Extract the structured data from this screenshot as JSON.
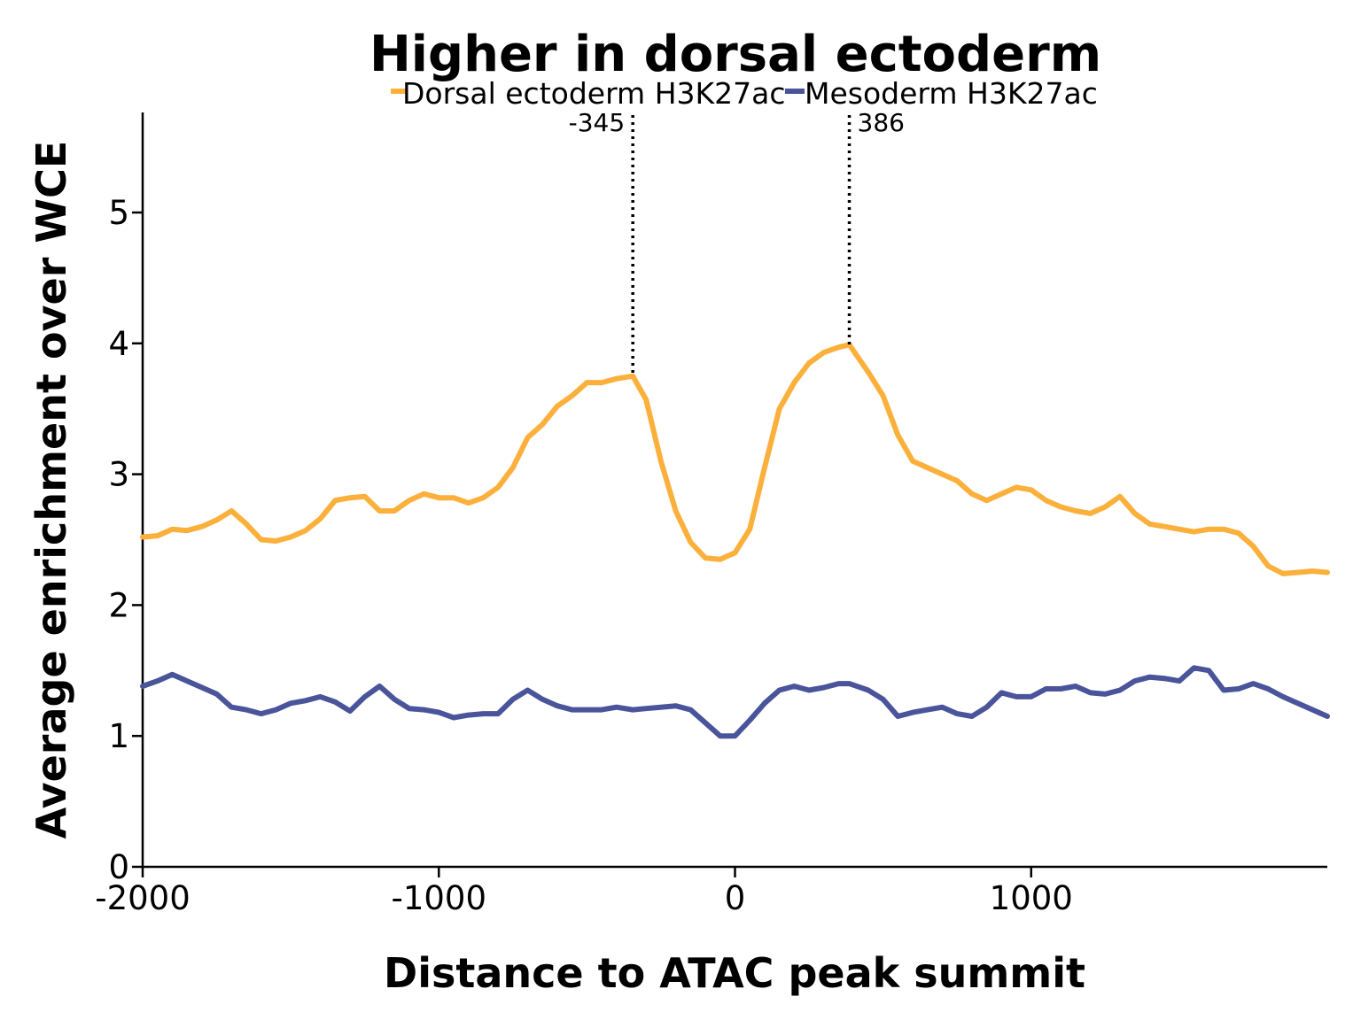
{
  "chart_data": {
    "type": "line",
    "title": "Higher in dorsal ectoderm",
    "xlabel": "Distance to ATAC peak summit",
    "ylabel": "Average enrichment over WCE",
    "xlim": [
      -2000,
      2000
    ],
    "ylim": [
      0,
      5.75
    ],
    "xticks": [
      -2000,
      -1000,
      0,
      1000
    ],
    "xtick_labels": [
      "-2000",
      "-1000",
      "0",
      "1000"
    ],
    "yticks": [
      0,
      1,
      2,
      3,
      4,
      5
    ],
    "ytick_labels": [
      "0",
      "1",
      "2",
      "3",
      "4",
      "5"
    ],
    "grid": false,
    "legend_position": "top-center",
    "series": [
      {
        "name": "Dorsal ectoderm H3K27ac",
        "color": "#FBB03B",
        "x": [
          -2000,
          -1950,
          -1900,
          -1850,
          -1800,
          -1750,
          -1700,
          -1650,
          -1600,
          -1550,
          -1500,
          -1450,
          -1400,
          -1350,
          -1300,
          -1250,
          -1200,
          -1150,
          -1100,
          -1050,
          -1000,
          -950,
          -900,
          -850,
          -800,
          -750,
          -700,
          -650,
          -600,
          -550,
          -500,
          -450,
          -400,
          -345,
          -300,
          -250,
          -200,
          -150,
          -100,
          -50,
          0,
          50,
          100,
          150,
          200,
          250,
          300,
          350,
          386,
          450,
          500,
          550,
          600,
          650,
          700,
          750,
          800,
          850,
          900,
          950,
          1000,
          1050,
          1100,
          1150,
          1200,
          1250,
          1300,
          1350,
          1400,
          1450,
          1500,
          1550,
          1600,
          1650,
          1700,
          1750,
          1800,
          1850,
          1900,
          1950,
          2000
        ],
        "values": [
          2.52,
          2.53,
          2.58,
          2.57,
          2.6,
          2.65,
          2.72,
          2.62,
          2.5,
          2.49,
          2.52,
          2.57,
          2.66,
          2.8,
          2.82,
          2.83,
          2.72,
          2.72,
          2.8,
          2.85,
          2.82,
          2.82,
          2.78,
          2.82,
          2.9,
          3.05,
          3.28,
          3.38,
          3.52,
          3.6,
          3.7,
          3.7,
          3.73,
          3.75,
          3.57,
          3.1,
          2.72,
          2.48,
          2.36,
          2.35,
          2.4,
          2.58,
          3.05,
          3.5,
          3.7,
          3.85,
          3.93,
          3.97,
          3.99,
          3.78,
          3.6,
          3.3,
          3.1,
          3.05,
          3.0,
          2.95,
          2.85,
          2.8,
          2.85,
          2.9,
          2.88,
          2.8,
          2.75,
          2.72,
          2.7,
          2.75,
          2.83,
          2.7,
          2.62,
          2.6,
          2.58,
          2.56,
          2.58,
          2.58,
          2.55,
          2.45,
          2.3,
          2.24,
          2.25,
          2.26,
          2.25
        ]
      },
      {
        "name": "Mesoderm H3K27ac",
        "color": "#4A549A",
        "x": [
          -2000,
          -1950,
          -1900,
          -1850,
          -1800,
          -1750,
          -1700,
          -1650,
          -1600,
          -1550,
          -1500,
          -1450,
          -1400,
          -1350,
          -1300,
          -1250,
          -1200,
          -1150,
          -1100,
          -1050,
          -1000,
          -950,
          -900,
          -850,
          -800,
          -750,
          -700,
          -650,
          -600,
          -550,
          -500,
          -450,
          -400,
          -345,
          -300,
          -250,
          -200,
          -150,
          -100,
          -50,
          0,
          50,
          100,
          150,
          200,
          250,
          300,
          350,
          386,
          450,
          500,
          550,
          600,
          650,
          700,
          750,
          800,
          850,
          900,
          950,
          1000,
          1050,
          1100,
          1150,
          1200,
          1250,
          1300,
          1350,
          1400,
          1450,
          1500,
          1550,
          1600,
          1650,
          1700,
          1750,
          1800,
          1850,
          1900,
          1950,
          2000
        ],
        "values": [
          1.38,
          1.42,
          1.47,
          1.42,
          1.37,
          1.32,
          1.22,
          1.2,
          1.17,
          1.2,
          1.25,
          1.27,
          1.3,
          1.26,
          1.19,
          1.3,
          1.38,
          1.28,
          1.21,
          1.2,
          1.18,
          1.14,
          1.16,
          1.17,
          1.17,
          1.28,
          1.35,
          1.28,
          1.23,
          1.2,
          1.2,
          1.2,
          1.22,
          1.2,
          1.21,
          1.22,
          1.23,
          1.2,
          1.1,
          1.0,
          1.0,
          1.12,
          1.25,
          1.35,
          1.38,
          1.35,
          1.37,
          1.4,
          1.4,
          1.35,
          1.28,
          1.15,
          1.18,
          1.2,
          1.22,
          1.17,
          1.15,
          1.22,
          1.33,
          1.3,
          1.3,
          1.36,
          1.36,
          1.38,
          1.33,
          1.32,
          1.35,
          1.42,
          1.45,
          1.44,
          1.42,
          1.52,
          1.5,
          1.35,
          1.36,
          1.4,
          1.36,
          1.3,
          1.25,
          1.2,
          1.15
        ]
      }
    ],
    "annotations": [
      {
        "x": -345,
        "y": 3.75,
        "label": "-345",
        "style": "dotted vertical line"
      },
      {
        "x": 386,
        "y": 3.99,
        "label": "386",
        "style": "dotted vertical line"
      }
    ]
  }
}
